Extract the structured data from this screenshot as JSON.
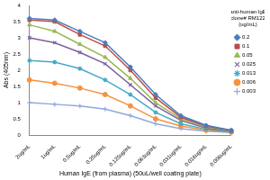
{
  "chart_data": {
    "type": "line",
    "x_label": "Human IgE (from plasma) (50uL/well coating plate)",
    "y_label": "Abs (405nm)",
    "legend_title": [
      "anti-human IgE",
      "clone# RM122",
      "(ug/mL)"
    ],
    "categories": [
      "2ug/mL",
      "1ug/mL",
      "0.5ug/mL",
      "0.25ug/mL",
      "0.125ug/mL",
      "0.063ug/mL",
      "0.031ug/mL",
      "0.016ug/mL",
      "0.008ug/mL"
    ],
    "series": [
      {
        "name": "0.2",
        "color": "#4a7ebb",
        "marker": "diamond",
        "values": [
          3.6,
          3.55,
          3.2,
          2.85,
          2.1,
          1.25,
          0.6,
          0.3,
          0.15
        ]
      },
      {
        "name": "0.1",
        "color": "#be4b48",
        "marker": "square",
        "values": [
          3.55,
          3.5,
          3.1,
          2.75,
          2.0,
          1.15,
          0.55,
          0.28,
          0.14
        ]
      },
      {
        "name": "0.05",
        "color": "#98b954",
        "marker": "triangle",
        "values": [
          3.4,
          3.2,
          2.8,
          2.4,
          1.75,
          1.0,
          0.5,
          0.25,
          0.13
        ]
      },
      {
        "name": "0.025",
        "color": "#7d60a0",
        "marker": "x",
        "values": [
          3.0,
          2.85,
          2.55,
          2.2,
          1.55,
          0.9,
          0.45,
          0.22,
          0.12
        ]
      },
      {
        "name": "0.013",
        "color": "#46aac5",
        "marker": "star",
        "values": [
          2.3,
          2.25,
          2.05,
          1.7,
          1.25,
          0.7,
          0.35,
          0.18,
          0.1
        ]
      },
      {
        "name": "0.006",
        "color": "#f69240",
        "marker": "circle",
        "values": [
          1.7,
          1.6,
          1.45,
          1.25,
          0.9,
          0.5,
          0.28,
          0.15,
          0.09
        ]
      },
      {
        "name": "0.003",
        "color": "#8fa9dc",
        "marker": "plus",
        "values": [
          1.0,
          0.95,
          0.9,
          0.8,
          0.6,
          0.35,
          0.2,
          0.12,
          0.08
        ]
      }
    ],
    "ylim": [
      0,
      4
    ],
    "yticks": [
      0,
      0.5,
      1,
      1.5,
      2,
      2.5,
      3,
      3.5,
      4
    ],
    "grid": false,
    "legend": "right"
  }
}
